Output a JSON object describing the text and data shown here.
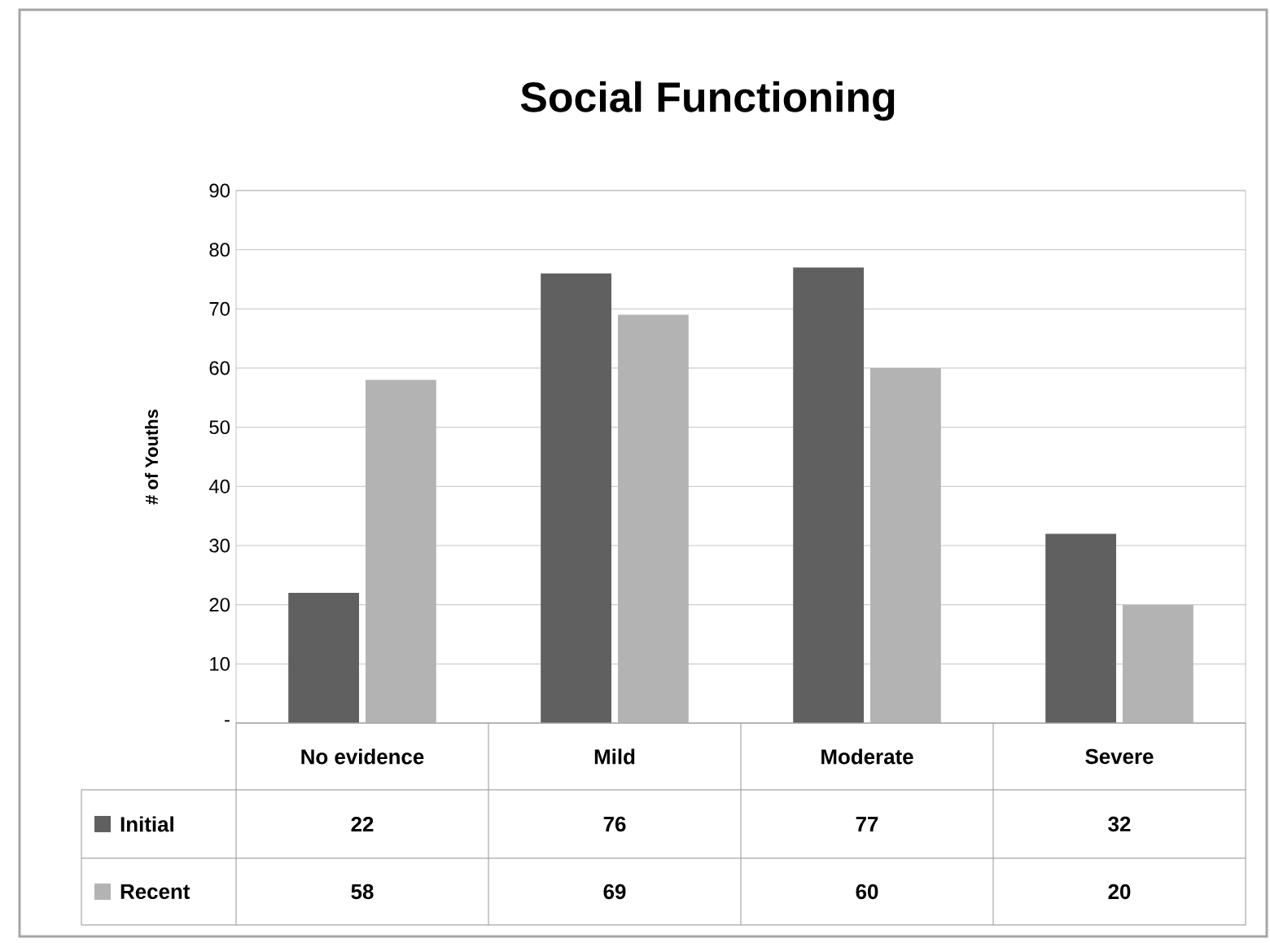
{
  "chart_data": {
    "type": "bar",
    "title": "Social Functioning",
    "ylabel": "# of Youths",
    "categories": [
      "No evidence",
      "Mild",
      "Moderate",
      "Severe"
    ],
    "series": [
      {
        "name": "Initial",
        "color": "#606060",
        "values": [
          22,
          76,
          77,
          32
        ]
      },
      {
        "name": "Recent",
        "color": "#b3b3b3",
        "values": [
          58,
          69,
          60,
          20
        ]
      }
    ],
    "ylim": [
      0,
      90
    ],
    "yticks": [
      {
        "value": 0,
        "label": "-"
      },
      10,
      20,
      30,
      40,
      50,
      60,
      70,
      80,
      90
    ],
    "grid": "y",
    "legend": "bottom",
    "data_labels": true
  }
}
